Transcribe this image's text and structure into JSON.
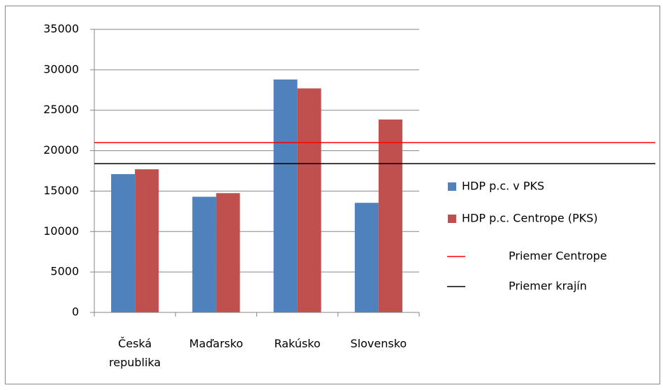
{
  "chart_data": {
    "type": "bar",
    "categories": [
      "Česká republika",
      "Maďarsko",
      "Rakúsko",
      "Slovensko"
    ],
    "series": [
      {
        "name": "HDP p.c. v PKS",
        "color": "#4f81bd",
        "values": [
          17100,
          14300,
          28800,
          13550
        ]
      },
      {
        "name": "HDP p.c. Centrope (PKS)",
        "color": "#c0504d",
        "values": [
          17700,
          14750,
          27700,
          23850
        ]
      }
    ],
    "reference_lines": [
      {
        "name": "Priemer Centrope",
        "color": "#ff0000",
        "value": 21000
      },
      {
        "name": "Priemer krajín",
        "color": "#000000",
        "value": 18400
      }
    ],
    "ylim": [
      0,
      35000
    ],
    "yticks": [
      0,
      5000,
      10000,
      15000,
      20000,
      25000,
      30000,
      35000
    ],
    "grid": true,
    "legend": "right"
  }
}
